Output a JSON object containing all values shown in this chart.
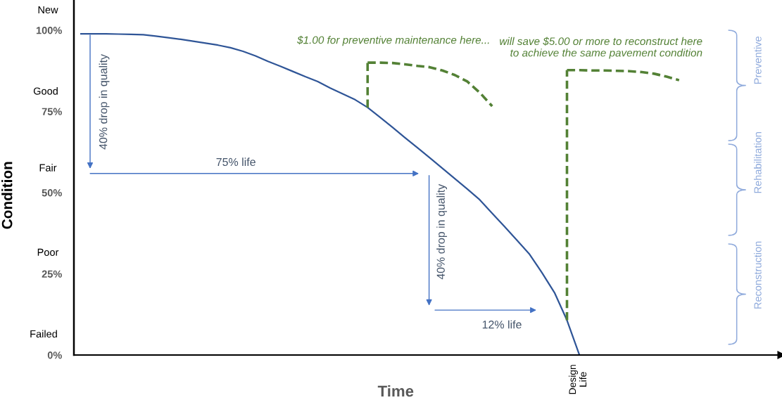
{
  "chart_data": {
    "type": "line",
    "xlabel": "Time",
    "ylabel": "Condition",
    "categories": [
      null,
      null,
      null,
      null,
      null,
      null,
      null,
      null,
      null,
      null,
      null,
      null,
      null,
      null,
      null,
      null,
      null,
      null,
      null,
      null,
      null,
      null,
      null,
      null,
      null,
      null,
      null,
      null,
      null,
      null,
      null,
      null,
      null,
      null,
      null,
      null,
      null,
      null,
      null,
      null,
      null,
      null,
      null,
      null,
      null,
      null,
      null,
      null,
      null,
      null,
      null,
      null,
      null,
      null,
      null,
      null,
      null
    ],
    "ylim": [
      0,
      109.3
    ],
    "yticks": [
      {
        "value": 0,
        "label": "0%"
      },
      {
        "value": 25,
        "label": "25%"
      },
      {
        "value": 50,
        "label": "50%"
      },
      {
        "value": 75,
        "label": "75%"
      },
      {
        "value": 100,
        "label": "100%"
      }
    ],
    "grid": false,
    "legend": false,
    "marker": "none",
    "series": [
      {
        "color": "#2f5597",
        "line_style": "solid",
        "values": [
          98.9,
          98.9,
          98.9,
          98.8,
          98.7,
          98.6,
          98.2,
          97.7,
          97.2,
          96.6,
          96.0,
          95.4,
          94.6,
          93.5,
          92.1,
          90.4,
          88.9,
          87.3,
          85.7,
          84.2,
          82.2,
          80.4,
          78.6,
          76.2,
          73.2,
          70.1,
          66.9,
          63.8,
          60.7,
          57.5,
          54.3,
          51.1,
          47.8,
          43.6,
          39.5,
          35.3,
          31,
          25.3,
          19.2,
          10.7,
          0,
          null,
          null,
          null,
          null,
          null,
          null,
          null,
          null,
          null,
          null,
          null,
          null,
          null,
          null,
          null,
          null
        ]
      },
      {
        "color": "#538135",
        "line_style": "dashed",
        "values": [
          null,
          null,
          null,
          null,
          null,
          null,
          null,
          null,
          null,
          null,
          null,
          null,
          null,
          null,
          null,
          null,
          null,
          null,
          null,
          null,
          null,
          null,
          null,
          90,
          90,
          89.9,
          89.5,
          89,
          88.6,
          87.6,
          86.2,
          84.2,
          80.8,
          76.6,
          null,
          null,
          null,
          null,
          null,
          null,
          null,
          null,
          null,
          null,
          null,
          null,
          null,
          null,
          null,
          null,
          null,
          null,
          null,
          null,
          null,
          null,
          null
        ]
      },
      {
        "color": "#538135",
        "line_style": "dashed",
        "values": [
          null,
          null,
          null,
          null,
          null,
          null,
          null,
          null,
          null,
          null,
          null,
          null,
          null,
          null,
          null,
          null,
          null,
          null,
          null,
          null,
          null,
          null,
          null,
          null,
          null,
          null,
          null,
          null,
          null,
          null,
          null,
          null,
          null,
          null,
          null,
          null,
          null,
          null,
          null,
          87.7,
          87.7,
          87.6,
          87.6,
          87.5,
          87.4,
          87.1,
          86.6,
          85.7,
          84.6,
          null,
          null,
          null,
          null,
          null,
          null,
          null,
          null
        ]
      }
    ],
    "annotations": [
      "New",
      "Good",
      "Fair",
      "Poor",
      "Failed",
      "40% drop in quality",
      "75% life",
      "40% drop in quality",
      "12% life",
      "$1.00 for preventive maintenance here...",
      "will save $5.00 or more to reconstruct here\nto achieve the same pavement condition",
      "Design\nLife",
      "Preventive",
      "Rehabilitation",
      "Reconstruction"
    ]
  }
}
